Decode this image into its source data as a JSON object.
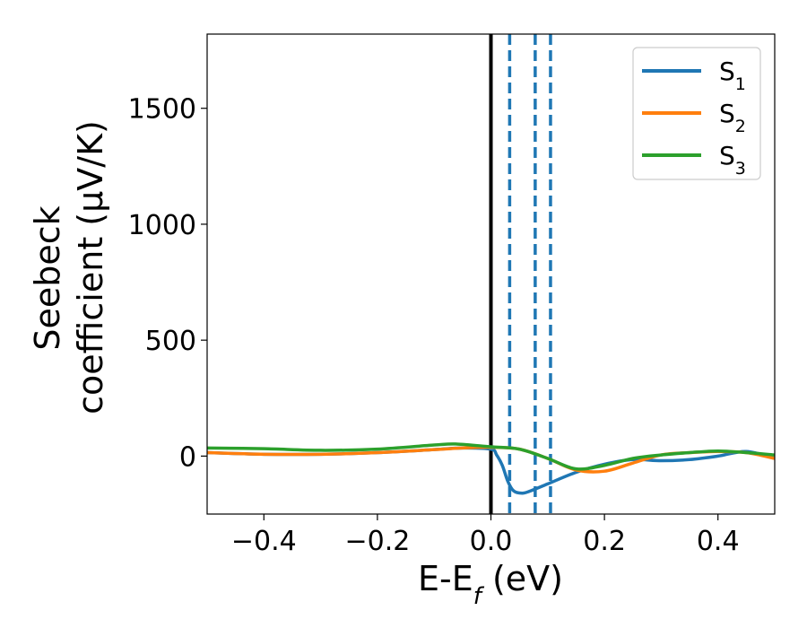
{
  "chart_data": {
    "type": "line",
    "xlabel": "E-E",
    "xlabel_sub": "f",
    "xlabel_unit": " (eV)",
    "ylabel_line1": "Seebeck",
    "ylabel_line2": "coefficient  (μV/K)",
    "xlim": [
      -0.5,
      0.5
    ],
    "ylim": [
      -250,
      1820
    ],
    "xticks": [
      -0.4,
      -0.2,
      0.0,
      0.2,
      0.4
    ],
    "xtick_labels": [
      "−0.4",
      "−0.2",
      "0.0",
      "0.2",
      "0.4"
    ],
    "yticks": [
      0,
      500,
      1000,
      1500
    ],
    "ytick_labels": [
      "0",
      "500",
      "1000",
      "1500"
    ],
    "grid": false,
    "legend_position": "top-right",
    "vertical_lines": [
      {
        "x": 0.0,
        "style": "solid",
        "color": "#000000"
      },
      {
        "x": 0.033,
        "style": "dashed",
        "color": "#1f77b4"
      },
      {
        "x": 0.078,
        "style": "dashed",
        "color": "#1f77b4"
      },
      {
        "x": 0.105,
        "style": "dashed",
        "color": "#1f77b4"
      }
    ],
    "series": [
      {
        "name": "S",
        "sub": "1",
        "color": "#1f77b4",
        "x": [
          -0.5,
          -0.4,
          -0.3,
          -0.2,
          -0.1,
          -0.05,
          0.0,
          0.01,
          0.02,
          0.03,
          0.04,
          0.055,
          0.07,
          0.1,
          0.15,
          0.2,
          0.25,
          0.3,
          0.35,
          0.4,
          0.45,
          0.5
        ],
        "y": [
          15,
          8,
          8,
          15,
          28,
          35,
          30,
          5,
          -40,
          -110,
          -150,
          -160,
          -150,
          -120,
          -70,
          -35,
          -15,
          -20,
          -15,
          0,
          20,
          -10
        ]
      },
      {
        "name": "S",
        "sub": "2",
        "color": "#ff7f0e",
        "x": [
          -0.5,
          -0.4,
          -0.3,
          -0.2,
          -0.1,
          -0.05,
          0.0,
          0.05,
          0.1,
          0.15,
          0.2,
          0.25,
          0.3,
          0.35,
          0.4,
          0.45,
          0.5
        ],
        "y": [
          15,
          8,
          8,
          15,
          28,
          35,
          38,
          30,
          -10,
          -60,
          -65,
          -30,
          5,
          15,
          20,
          15,
          -10
        ]
      },
      {
        "name": "S",
        "sub": "3",
        "color": "#2ca02c",
        "x": [
          -0.5,
          -0.4,
          -0.3,
          -0.2,
          -0.1,
          -0.06,
          0.0,
          0.05,
          0.1,
          0.15,
          0.2,
          0.25,
          0.3,
          0.35,
          0.4,
          0.45,
          0.5
        ],
        "y": [
          35,
          32,
          25,
          30,
          48,
          52,
          40,
          30,
          -10,
          -55,
          -40,
          -10,
          5,
          15,
          22,
          15,
          5
        ]
      }
    ]
  }
}
